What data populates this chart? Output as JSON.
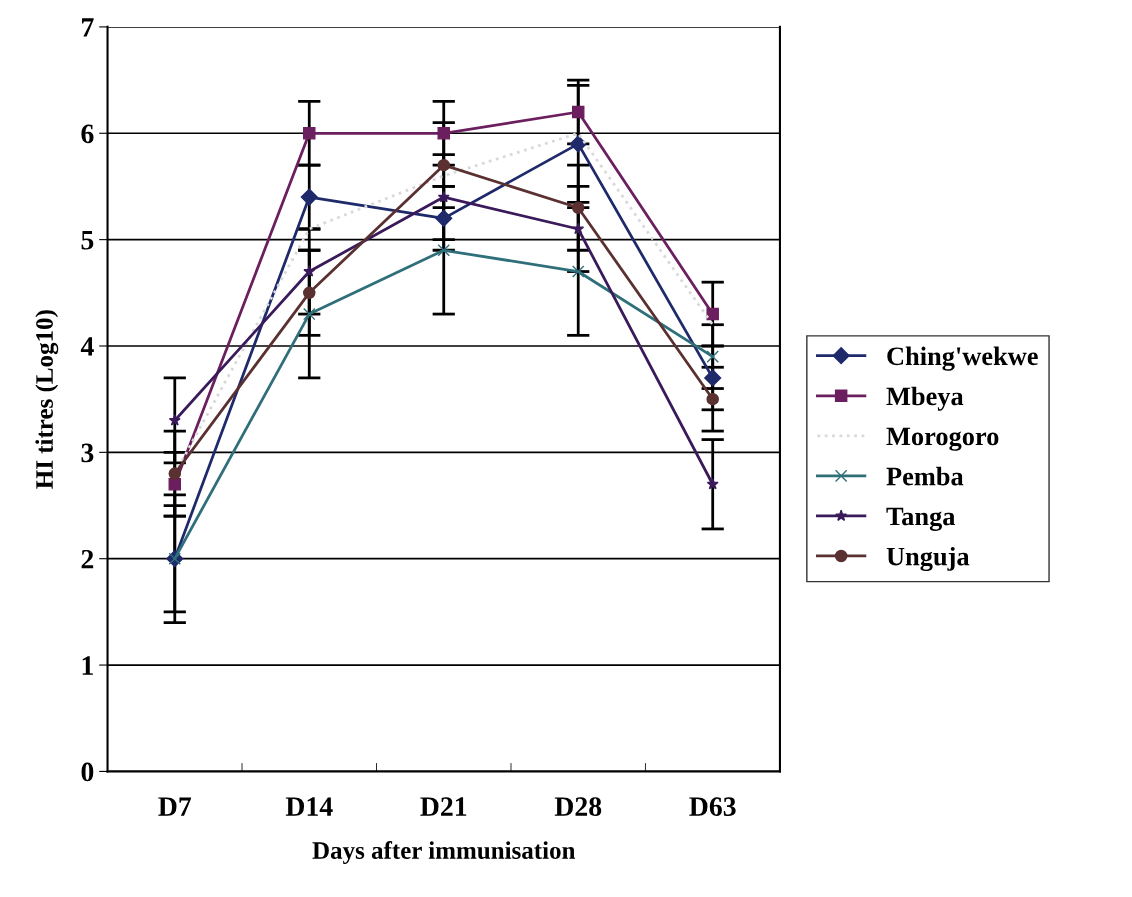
{
  "chart_data": {
    "type": "line",
    "xlabel": "Days after immunisation",
    "ylabel": "HI titres (Log10)",
    "categories": [
      "D7",
      "D14",
      "D21",
      "D28",
      "D63"
    ],
    "ylim": [
      0,
      7
    ],
    "yticks": [
      0,
      1,
      2,
      3,
      4,
      5,
      6,
      7
    ],
    "grid": "y",
    "legend": "right",
    "series": [
      {
        "name": "Ching'wekwe",
        "color": "#1f2a6b",
        "marker": "diamond",
        "line_style": "solid",
        "values": [
          2.0,
          5.4,
          5.2,
          5.9,
          3.7
        ],
        "errors": [
          0.5,
          0.3,
          0.3,
          0.55,
          0.3
        ]
      },
      {
        "name": "Mbeya",
        "color": "#6b1f5e",
        "marker": "square",
        "line_style": "solid",
        "values": [
          2.7,
          6.0,
          6.0,
          6.2,
          4.3
        ],
        "errors": [
          0.3,
          0.3,
          0.3,
          0.3,
          0.3
        ]
      },
      {
        "name": "Morogoro",
        "color": "#d9d9d9",
        "marker": "none",
        "line_style": "dotted",
        "values": [
          2.8,
          5.1,
          5.6,
          6.0,
          4.2
        ]
      },
      {
        "name": "Pemba",
        "color": "#2f6f7a",
        "marker": "cross",
        "line_style": "solid",
        "values": [
          2.0,
          4.3,
          4.9,
          4.7,
          3.9
        ],
        "errors": [
          0.6,
          0.6,
          0.6,
          0.6,
          0.3
        ]
      },
      {
        "name": "Tanga",
        "color": "#3a1a5a",
        "marker": "star",
        "line_style": "solid",
        "values": [
          3.3,
          4.7,
          5.4,
          5.1,
          2.7
        ],
        "errors": [
          0.4,
          0.4,
          0.4,
          0.4,
          0.42
        ]
      },
      {
        "name": "Unguja",
        "color": "#5a3030",
        "marker": "circle",
        "line_style": "solid",
        "values": [
          2.8,
          4.5,
          5.7,
          5.3,
          3.5
        ],
        "errors": [
          0.4,
          0.4,
          0.4,
          0.4,
          0.3
        ]
      }
    ]
  }
}
